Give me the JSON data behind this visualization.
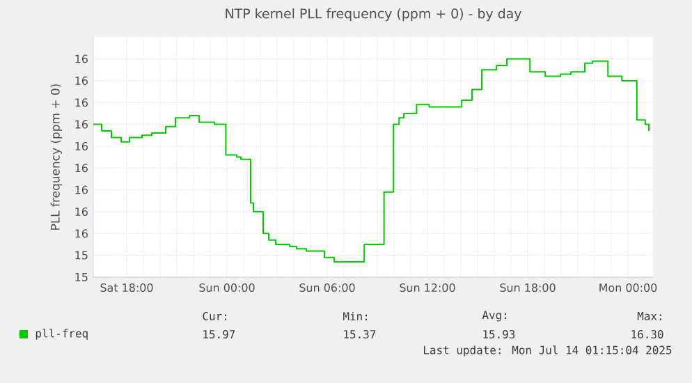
{
  "chart_data": {
    "type": "step",
    "title": "NTP kernel PLL frequency (ppm + 0) - by day",
    "ylabel": "PLL frequency (ppm + 0)",
    "x": [
      "2025-07-12T16:00",
      "2025-07-12T16:30",
      "2025-07-12T17:05",
      "2025-07-12T17:40",
      "2025-07-12T18:10",
      "2025-07-12T18:55",
      "2025-07-12T19:30",
      "2025-07-12T20:20",
      "2025-07-12T20:55",
      "2025-07-12T21:45",
      "2025-07-12T22:20",
      "2025-07-12T23:15",
      "2025-07-12T23:56",
      "2025-07-13T00:35",
      "2025-07-13T00:50",
      "2025-07-13T01:25",
      "2025-07-13T01:35",
      "2025-07-13T02:10",
      "2025-07-13T02:30",
      "2025-07-13T02:55",
      "2025-07-13T03:45",
      "2025-07-13T04:10",
      "2025-07-13T04:45",
      "2025-07-13T05:50",
      "2025-07-13T06:25",
      "2025-07-13T08:13",
      "2025-07-13T09:24",
      "2025-07-13T09:58",
      "2025-07-13T10:18",
      "2025-07-13T10:35",
      "2025-07-13T11:21",
      "2025-07-13T12:06",
      "2025-07-13T14:03",
      "2025-07-13T14:40",
      "2025-07-13T15:15",
      "2025-07-13T16:08",
      "2025-07-13T16:45",
      "2025-07-13T18:08",
      "2025-07-13T19:03",
      "2025-07-13T19:58",
      "2025-07-13T20:35",
      "2025-07-13T21:25",
      "2025-07-13T21:53",
      "2025-07-13T22:48",
      "2025-07-13T23:38",
      "2025-07-14T00:32",
      "2025-07-14T01:02",
      "2025-07-14T01:15"
    ],
    "series": [
      {
        "name": "pll-freq",
        "color": "#00cc00",
        "values": [
          16.0,
          15.97,
          15.94,
          15.92,
          15.94,
          15.95,
          15.96,
          15.99,
          16.03,
          16.04,
          16.01,
          16.0,
          15.86,
          15.85,
          15.84,
          15.64,
          15.6,
          15.5,
          15.47,
          15.45,
          15.44,
          15.43,
          15.42,
          15.39,
          15.37,
          15.45,
          15.69,
          16.0,
          16.03,
          16.05,
          16.09,
          16.08,
          16.11,
          16.16,
          16.25,
          16.27,
          16.3,
          16.24,
          16.22,
          16.23,
          16.24,
          16.28,
          16.29,
          16.22,
          16.2,
          16.02,
          16.0,
          15.97
        ]
      }
    ],
    "xlim": [
      "2025-07-12T16:00",
      "2025-07-14T01:30"
    ],
    "xticks": [
      {
        "value": "2025-07-12T18:00",
        "label": "Sat 18:00"
      },
      {
        "value": "2025-07-12T21:00",
        "label": null
      },
      {
        "value": "2025-07-13T00:00",
        "label": "Sun 00:00"
      },
      {
        "value": "2025-07-13T03:00",
        "label": null
      },
      {
        "value": "2025-07-13T06:00",
        "label": "Sun 06:00"
      },
      {
        "value": "2025-07-13T09:00",
        "label": null
      },
      {
        "value": "2025-07-13T12:00",
        "label": "Sun 12:00"
      },
      {
        "value": "2025-07-13T15:00",
        "label": null
      },
      {
        "value": "2025-07-13T18:00",
        "label": "Sun 18:00"
      },
      {
        "value": "2025-07-13T21:00",
        "label": null
      },
      {
        "value": "2025-07-14T00:00",
        "label": "Mon 00:00"
      }
    ],
    "ylim": [
      15.3,
      16.4
    ],
    "yticks": [
      {
        "value": 15.3,
        "label": "15"
      },
      {
        "value": 15.4,
        "label": "15"
      },
      {
        "value": 15.5,
        "label": "16"
      },
      {
        "value": 15.6,
        "label": "16"
      },
      {
        "value": 15.7,
        "label": "16"
      },
      {
        "value": 15.8,
        "label": "16"
      },
      {
        "value": 15.9,
        "label": "16"
      },
      {
        "value": 16.0,
        "label": "16"
      },
      {
        "value": 16.1,
        "label": "16"
      },
      {
        "value": 16.2,
        "label": "16"
      },
      {
        "value": 16.3,
        "label": "16"
      }
    ],
    "grid": true,
    "legend": "bottom",
    "annotations": [
      "Cur:",
      "Min:",
      "Avg:",
      "Max:",
      "15.97",
      "15.37",
      "15.93",
      "16.30",
      "Last update: Mon Jul 14 01:15:04 2025"
    ]
  }
}
